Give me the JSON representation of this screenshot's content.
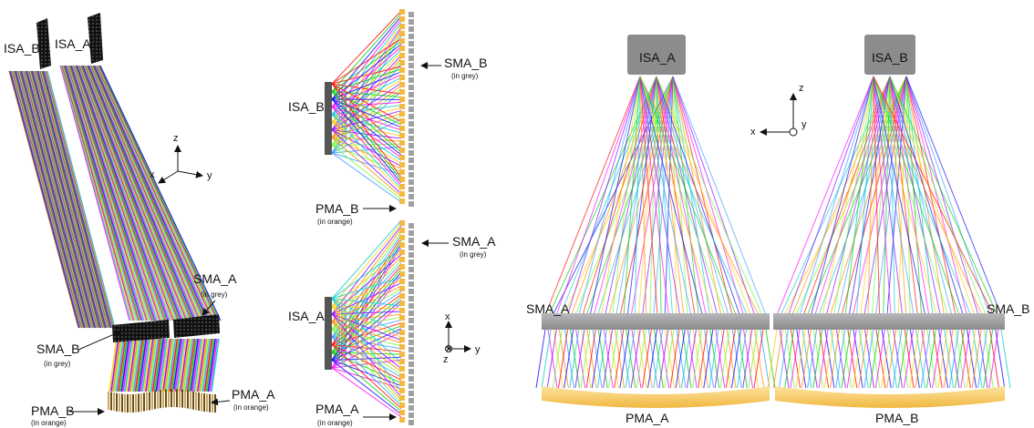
{
  "panel_left": {
    "isa_b": "ISA_B",
    "isa_a": "ISA_A",
    "sma_a": "SMA_A",
    "sma_a_note": "(in grey)",
    "sma_b": "SMA_B",
    "sma_b_note": "(in grey)",
    "pma_a": "PMA_A",
    "pma_a_note": "(in orange)",
    "pma_b": "PMA_B",
    "pma_b_note": "(in orange)",
    "axes": {
      "z": "z",
      "x": "x",
      "y": "y"
    }
  },
  "panel_middle": {
    "sma_b": "SMA_B",
    "sma_b_note": "(in grey)",
    "isa_b": "ISA_B",
    "pma_b": "PMA_B",
    "pma_b_note": "(in orange)",
    "sma_a": "SMA_A",
    "sma_a_note": "(in grey)",
    "isa_a": "ISA_A",
    "pma_a": "PMA_A",
    "pma_a_note": "(in orange)",
    "axes": {
      "x": "x",
      "y": "y",
      "z": "z"
    }
  },
  "panel_right": {
    "isa_a": "ISA_A",
    "isa_b": "ISA_B",
    "sma_a": "SMA_A",
    "sma_b": "SMA_B",
    "pma_a": "PMA_A",
    "pma_b": "PMA_B",
    "axes": {
      "z": "z",
      "x": "x",
      "y": "y"
    }
  },
  "colors": {
    "grey_mirror": "#9a9a9c",
    "orange_mirror": "#f7c85a",
    "rays": [
      "#ff0000",
      "#00cc00",
      "#0000ff",
      "#ff00ff",
      "#00cccc",
      "#ffcc00",
      "#8800ff",
      "#ff8800",
      "#66ff33",
      "#3399ff"
    ]
  }
}
